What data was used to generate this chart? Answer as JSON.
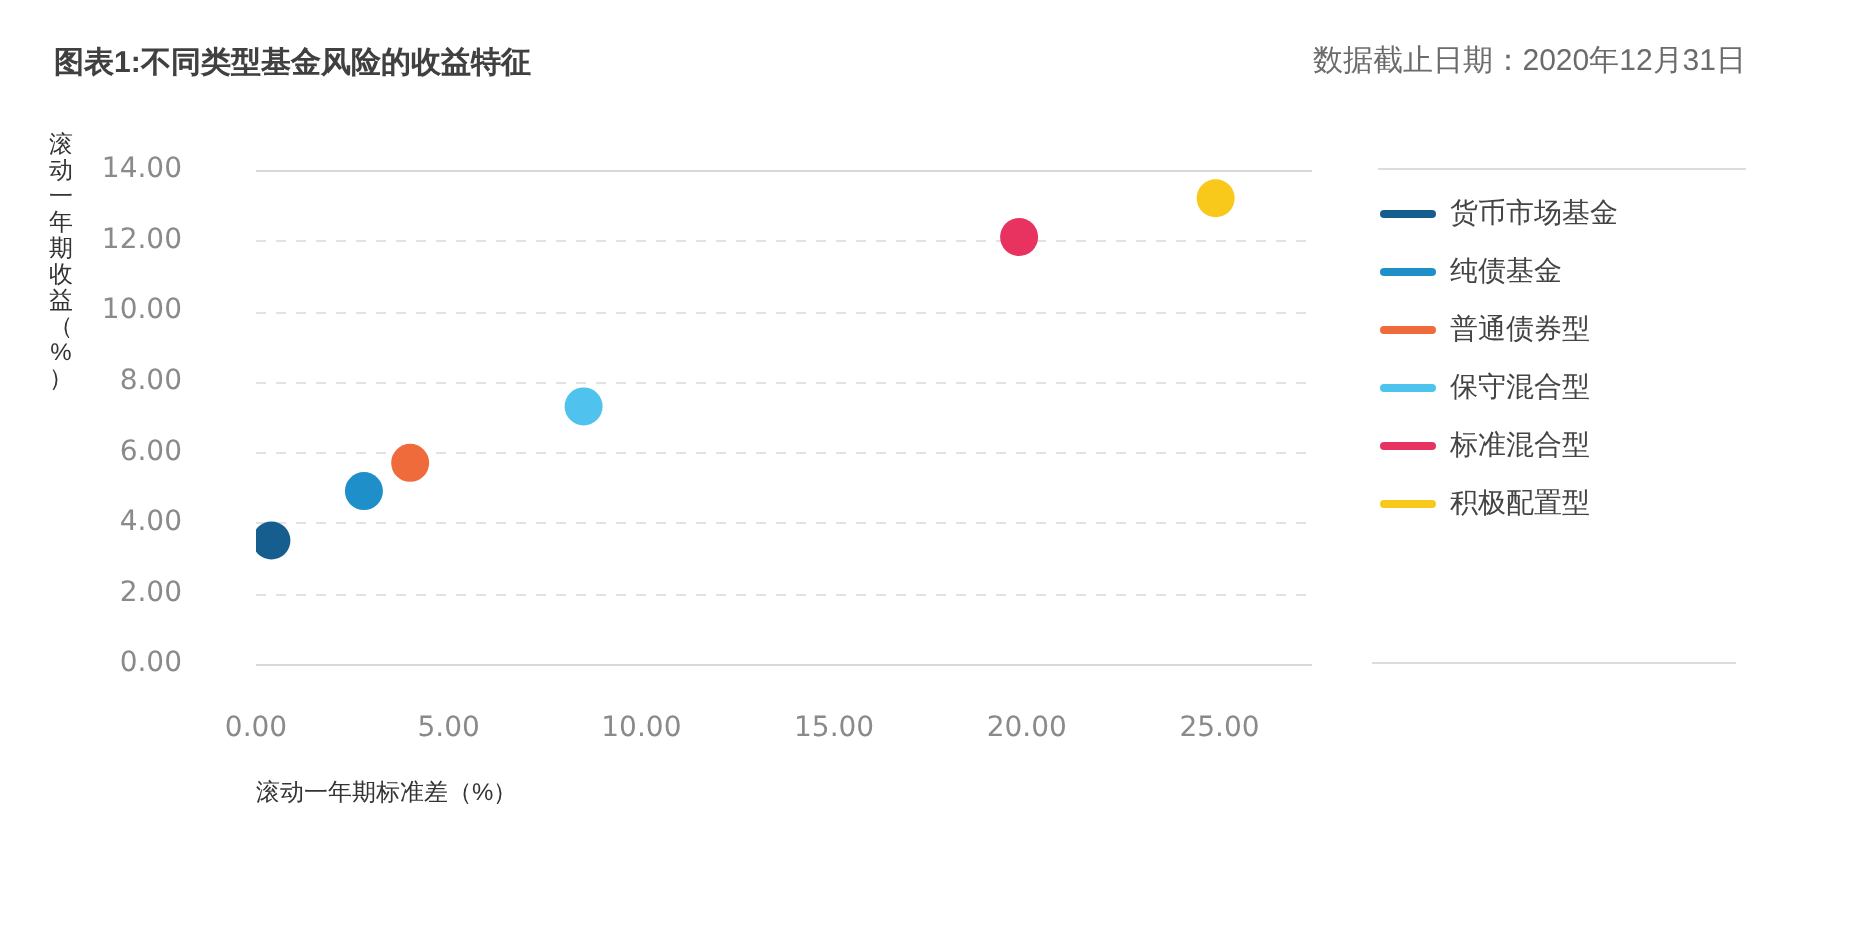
{
  "chart_data": {
    "type": "scatter",
    "title": "图表1:不同类型基金风险的收益特征",
    "subtitle": "数据截止日期：2020年12月31日",
    "xlabel": "滚动一年期标准差（%）",
    "ylabel": "滚动一年期收益（%）",
    "xlim": [
      0,
      27.4
    ],
    "xticks": [
      {
        "value": 0,
        "label": "0.00"
      },
      {
        "value": 5,
        "label": "5.00"
      },
      {
        "value": 10,
        "label": "10.00"
      },
      {
        "value": 15,
        "label": "15.00"
      },
      {
        "value": 20,
        "label": "20.00"
      },
      {
        "value": 25,
        "label": "25.00"
      }
    ],
    "ylim": [
      0,
      14
    ],
    "yticks": [
      {
        "value": 0,
        "label": "0.00"
      },
      {
        "value": 2,
        "label": "2.00"
      },
      {
        "value": 4,
        "label": "4.00"
      },
      {
        "value": 6,
        "label": "6.00"
      },
      {
        "value": 8,
        "label": "8.00"
      },
      {
        "value": 10,
        "label": "10.00"
      },
      {
        "value": 12,
        "label": "12.00"
      },
      {
        "value": 14,
        "label": "14.00"
      }
    ],
    "grid": "y",
    "legend": "right",
    "marker": "circle",
    "series": [
      {
        "name": "货币市场基金",
        "color": "#155e8e",
        "x": [
          0.4
        ],
        "values": [
          3.5
        ]
      },
      {
        "name": "纯债基金",
        "color": "#1f8fc9",
        "x": [
          2.8
        ],
        "values": [
          4.9
        ]
      },
      {
        "name": "普通债券型",
        "color": "#ef6b3b",
        "x": [
          4.0
        ],
        "values": [
          5.7
        ]
      },
      {
        "name": "保守混合型",
        "color": "#4fc3ee",
        "x": [
          8.5
        ],
        "values": [
          7.3
        ]
      },
      {
        "name": "标准混合型",
        "color": "#e8325f",
        "x": [
          19.8
        ],
        "values": [
          12.1
        ]
      },
      {
        "name": "积极配置型",
        "color": "#f8c81a",
        "x": [
          24.9
        ],
        "values": [
          13.2
        ]
      }
    ]
  }
}
